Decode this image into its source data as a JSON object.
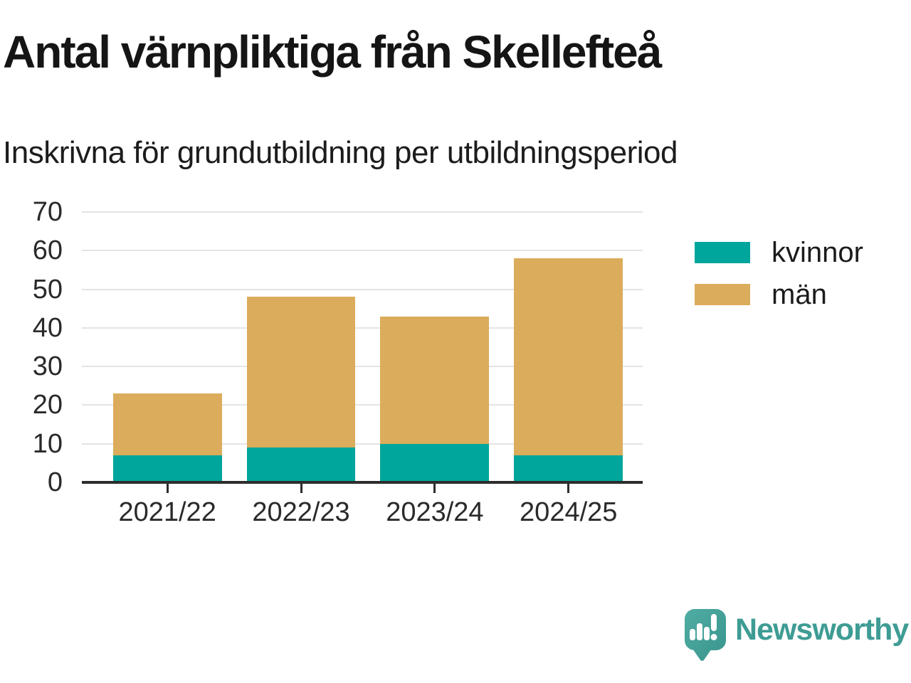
{
  "title": "Antal värnpliktiga från Skellefteå",
  "subtitle": "Inskrivna för grundutbildning per utbildningsperiod",
  "colors": {
    "kvinnor": "#00a69c",
    "man": "#dbac5b",
    "axis": "#2d2d2d",
    "gridline": "#e4e4e4",
    "brand_teal": "#3e9c94"
  },
  "chart_data": {
    "type": "bar",
    "stacked": true,
    "title": "Antal värnpliktiga från Skellefteå",
    "subtitle": "Inskrivna för grundutbildning per utbildningsperiod",
    "categories": [
      "2021/22",
      "2022/23",
      "2023/24",
      "2024/25"
    ],
    "series": [
      {
        "name": "kvinnor",
        "color": "#00a69c",
        "values": [
          7,
          9,
          10,
          7
        ]
      },
      {
        "name": "män",
        "color": "#dbac5b",
        "values": [
          16,
          39,
          33,
          51
        ]
      }
    ],
    "totals": [
      23,
      48,
      43,
      58
    ],
    "xlabel": "",
    "ylabel": "",
    "ylim": [
      0,
      70
    ],
    "yticks": [
      0,
      10,
      20,
      30,
      40,
      50,
      60,
      70
    ],
    "grid": true,
    "legend_position": "right"
  },
  "branding": {
    "logo_text": "Newsworthy",
    "logo_icon": "speech-bubble-bar-chart-icon"
  }
}
